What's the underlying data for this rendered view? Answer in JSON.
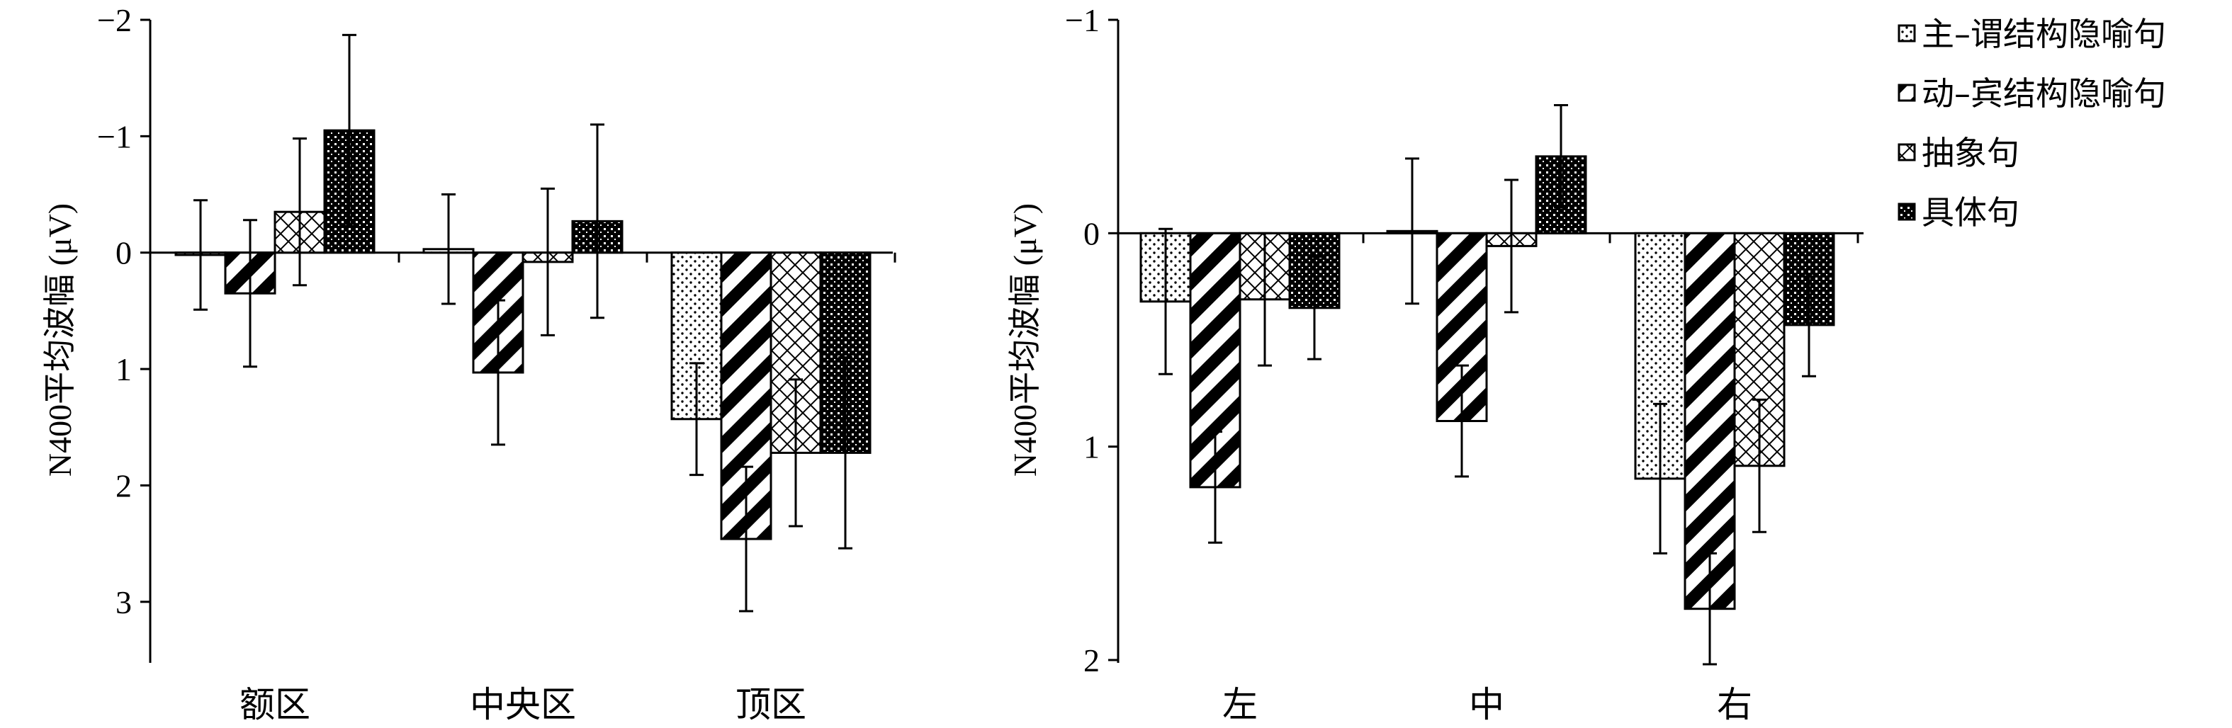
{
  "chart_data": [
    {
      "type": "bar",
      "ylabel": "N400平均波幅 (μV)",
      "categories": [
        "额区",
        "中央区",
        "顶区"
      ],
      "y_inverted": true,
      "ylim": [
        -2,
        3.5
      ],
      "yticks": [
        -2,
        -1,
        0,
        1,
        2,
        3
      ],
      "ytick_labels": [
        "−2",
        "−1",
        "0",
        "1",
        "2",
        "3"
      ],
      "series": [
        {
          "name": "主–谓结构隐喻句",
          "values": [
            0.02,
            -0.03,
            1.43
          ],
          "errors": [
            0.47,
            0.47,
            0.48
          ]
        },
        {
          "name": "动–宾结构隐喻句",
          "values": [
            0.35,
            1.03,
            2.46
          ],
          "errors": [
            0.63,
            0.62,
            0.62
          ]
        },
        {
          "name": "抽象句",
          "values": [
            -0.35,
            0.08,
            1.72
          ],
          "errors": [
            0.63,
            0.63,
            0.63
          ]
        },
        {
          "name": "具体句",
          "values": [
            -1.05,
            -0.27,
            1.72
          ],
          "errors": [
            0.82,
            0.83,
            0.82
          ]
        }
      ]
    },
    {
      "type": "bar",
      "ylabel": "N400平均波幅 (μV)",
      "categories": [
        "左",
        "中",
        "右"
      ],
      "y_inverted": true,
      "ylim": [
        -1,
        2
      ],
      "yticks": [
        -1,
        0,
        1,
        2
      ],
      "ytick_labels": [
        "−1",
        "0",
        "1",
        "2"
      ],
      "series": [
        {
          "name": "主–谓结构隐喻句",
          "values": [
            0.32,
            -0.01,
            1.15
          ],
          "errors": [
            0.34,
            0.34,
            0.35
          ]
        },
        {
          "name": "动–宾结构隐喻句",
          "values": [
            1.19,
            0.88,
            1.76
          ],
          "errors": [
            0.26,
            0.26,
            0.26
          ]
        },
        {
          "name": "抽象句",
          "values": [
            0.31,
            0.06,
            1.09
          ],
          "errors": [
            0.31,
            0.31,
            0.31
          ]
        },
        {
          "name": "具体句",
          "values": [
            0.35,
            -0.36,
            0.43
          ],
          "errors": [
            0.24,
            0.24,
            0.24
          ]
        }
      ]
    }
  ],
  "legend": {
    "position": "top-right",
    "items": [
      {
        "label": "主–谓结构隐喻句",
        "pattern": "dots"
      },
      {
        "label": "动–宾结构隐喻句",
        "pattern": "diagonal-stripes"
      },
      {
        "label": "抽象句",
        "pattern": "crosshatch"
      },
      {
        "label": "具体句",
        "pattern": "dense-dark"
      }
    ]
  }
}
